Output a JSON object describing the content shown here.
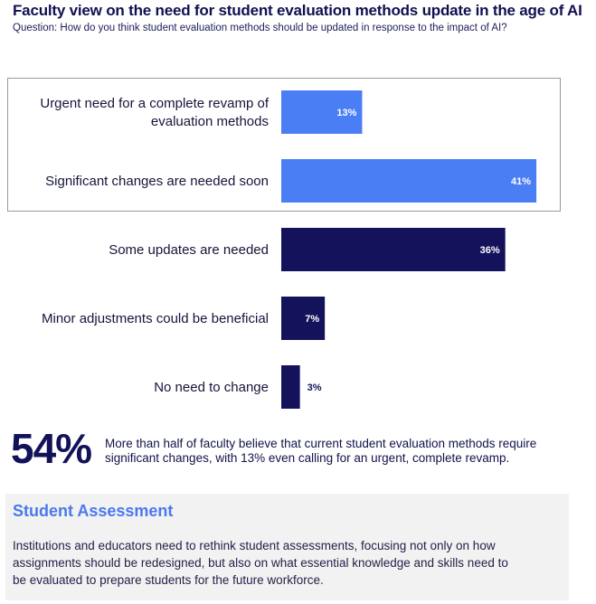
{
  "title": "Faculty view on the need for student evaluation methods update in the age of AI",
  "subtitle": "Question: How do you think student evaluation methods should be updated in response to the impact of AI?",
  "chart_data": {
    "type": "bar",
    "orientation": "horizontal",
    "categories": [
      [
        "Urgent need for a complete revamp of",
        "evaluation methods"
      ],
      [
        "Significant changes are needed soon"
      ],
      [
        "Some updates are needed"
      ],
      [
        "Minor adjustments could be beneficial"
      ],
      [
        "No need to change"
      ]
    ],
    "values": [
      13,
      41,
      36,
      7,
      3
    ],
    "value_labels": [
      "13%",
      "41%",
      "36%",
      "7%",
      "3%"
    ],
    "highlighted": [
      true,
      true,
      false,
      false,
      false
    ],
    "colors": {
      "highlight": "#4a7ef5",
      "default": "#14125a",
      "label_dark": "#14125a",
      "label_light": "#ffffff"
    },
    "xlim": [
      0,
      45
    ],
    "grid": false,
    "legend": "none"
  },
  "stat": {
    "value": "54%",
    "text": "More than half of faculty believe that current student evaluation methods require significant changes, with 13% even calling for an urgent, complete revamp."
  },
  "panel": {
    "title": "Student Assessment",
    "text": "Institutions and educators need to rethink student assessments, focusing not only on how assignments should be redesigned, but also on what essential knowledge and skills need to be evaluated to prepare students for the future workforce."
  }
}
